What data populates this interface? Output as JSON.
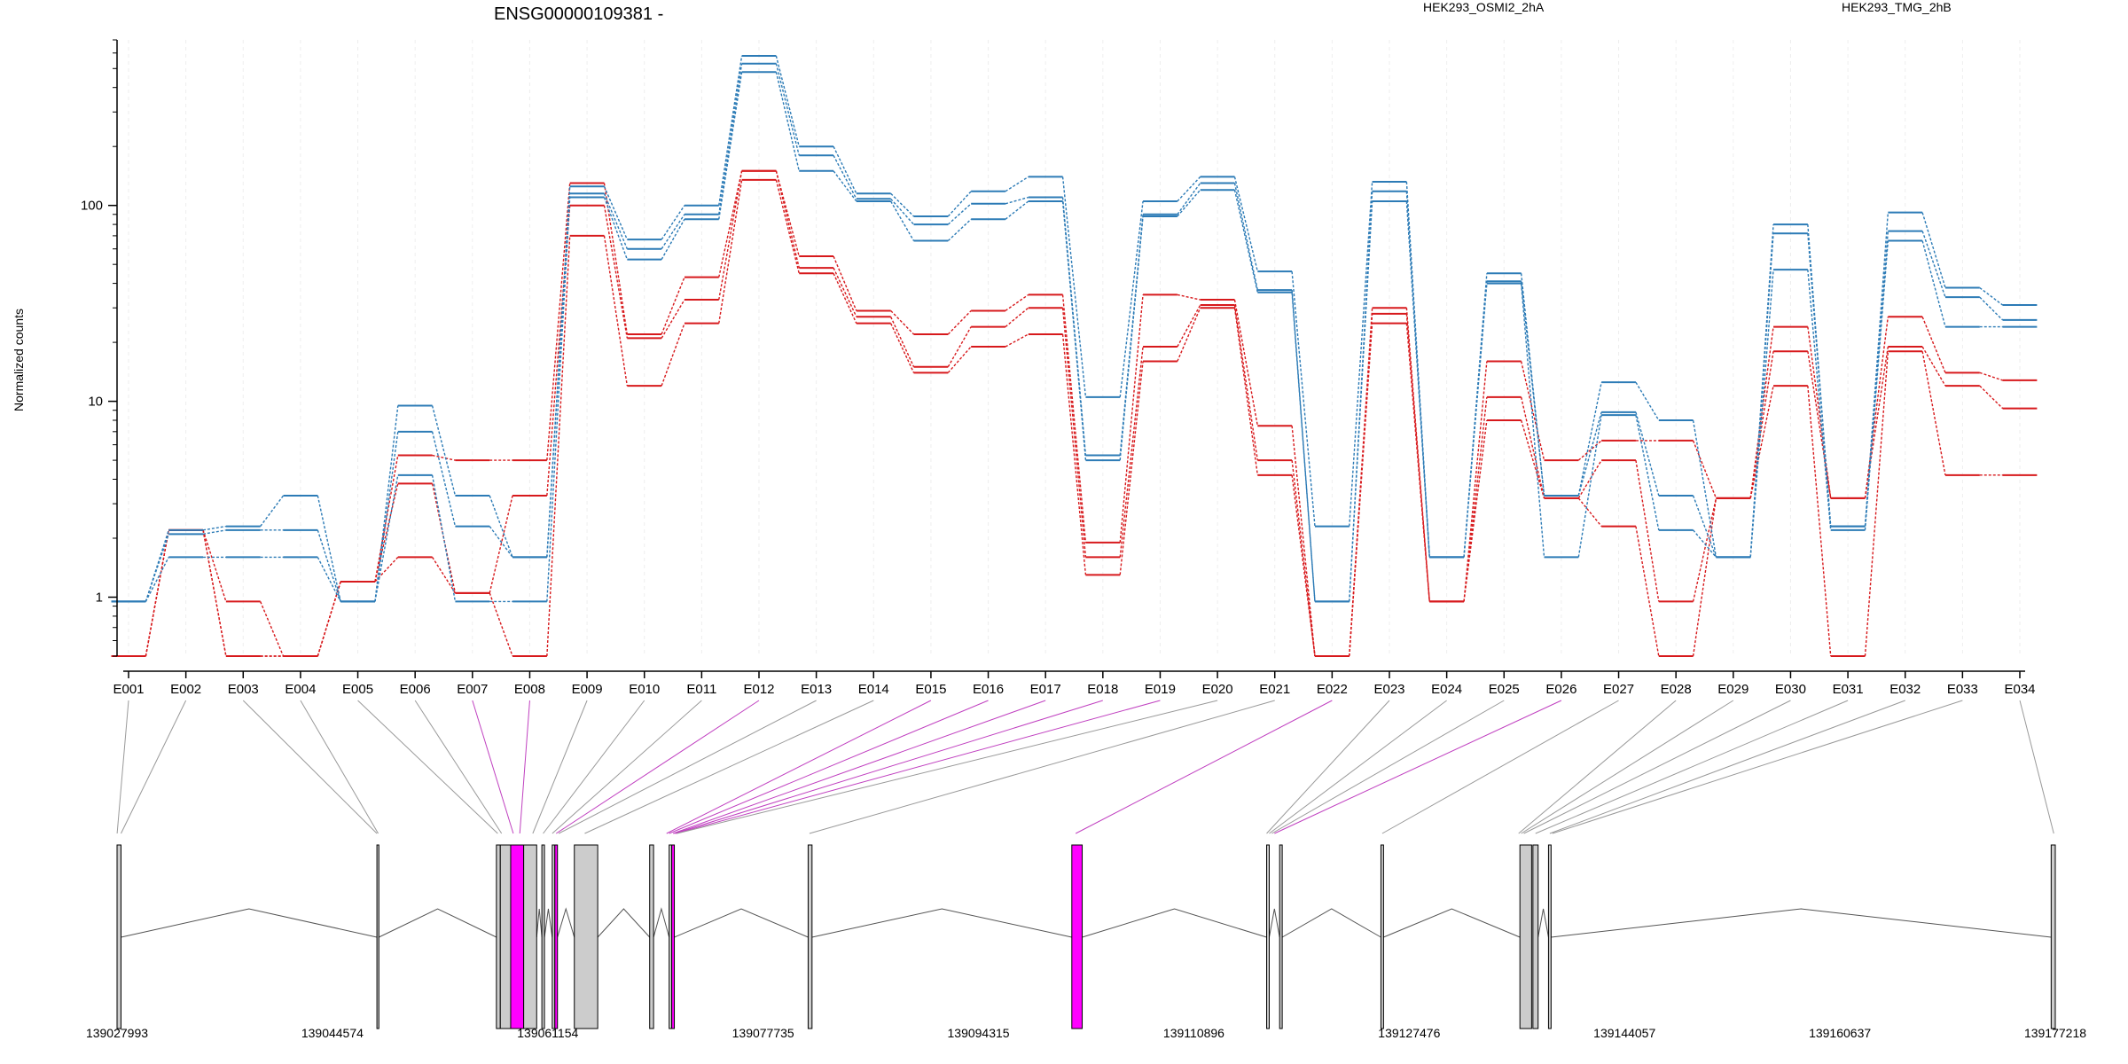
{
  "figure": {
    "title": "ENSG00000109381 -",
    "ylabel": "Normalized counts",
    "legend_placement": "top",
    "colors": {
      "cond_a": "#d7191c",
      "cond_b": "#2c7bb6",
      "highlight": "#ff00ff",
      "exon_fill": "#cccccc"
    }
  },
  "chart_data": [
    {
      "type": "line",
      "scale": "log",
      "ylim": [
        0.5,
        700
      ],
      "yticks": [
        "1",
        "10",
        "100"
      ],
      "ytick_values": [
        1,
        10,
        100
      ],
      "grid": true,
      "categories": [
        "E001",
        "E002",
        "E003",
        "E004",
        "E005",
        "E006",
        "E007",
        "E008",
        "E009",
        "E010",
        "E011",
        "E012",
        "E013",
        "E014",
        "E015",
        "E016",
        "E017",
        "E018",
        "E019",
        "E020",
        "E021",
        "E022",
        "E023",
        "E024",
        "E025",
        "E026",
        "E027",
        "E028",
        "E029",
        "E030",
        "E031",
        "E032",
        "E033",
        "E034"
      ],
      "series": [
        {
          "name": "HEK293_OSMI2_2hA",
          "color": "#d7191c",
          "values": [
            0.5,
            2.2,
            0.5,
            0.5,
            1.2,
            5.3,
            5.0,
            5.0,
            130,
            22,
            43,
            150,
            55,
            29,
            22,
            29,
            35,
            1.9,
            35,
            33,
            7.5,
            0.5,
            30,
            0.95,
            16,
            5.0,
            6.3,
            6.3,
            3.2,
            24,
            3.2,
            27,
            14,
            12.8
          ]
        },
        {
          "name": "",
          "color": "#d7191c",
          "values": [
            0.5,
            2.2,
            0.95,
            0.5,
            1.2,
            3.8,
            1.05,
            3.3,
            100,
            21,
            33,
            150,
            48,
            27,
            15,
            24,
            30,
            1.6,
            19,
            31,
            5.0,
            0.5,
            28,
            0.95,
            10.5,
            3.2,
            5.0,
            0.95,
            3.2,
            18,
            3.2,
            19,
            12,
            9.2
          ]
        },
        {
          "name": "",
          "color": "#d7191c",
          "values": [
            0.5,
            2.2,
            0.5,
            0.5,
            1.2,
            1.6,
            1.05,
            0.5,
            70,
            12,
            25,
            135,
            45,
            25,
            14,
            19,
            22,
            1.3,
            16,
            30,
            4.2,
            0.5,
            25,
            0.95,
            8,
            3.2,
            2.3,
            0.5,
            3.2,
            12,
            0.5,
            18,
            4.2,
            4.2
          ]
        },
        {
          "name": "HEK293_TMG_2hB",
          "color": "#2c7bb6",
          "values": [
            0.95,
            2.2,
            2.3,
            3.3,
            0.95,
            9.5,
            3.3,
            1.6,
            125,
            67,
            100,
            580,
            200,
            115,
            88,
            118,
            140,
            10.5,
            105,
            140,
            46,
            2.3,
            132,
            1.6,
            45,
            3.3,
            12.5,
            8,
            1.6,
            80,
            2.3,
            92,
            38,
            31
          ]
        },
        {
          "name": "",
          "color": "#2c7bb6",
          "values": [
            0.95,
            2.1,
            2.2,
            2.2,
            0.95,
            7.0,
            2.3,
            1.6,
            115,
            60,
            90,
            530,
            180,
            108,
            80,
            102,
            110,
            5.3,
            90,
            130,
            37,
            0.95,
            118,
            1.6,
            41,
            3.3,
            8.8,
            3.3,
            1.6,
            72,
            2.3,
            74,
            34,
            26
          ]
        },
        {
          "name": "",
          "color": "#2c7bb6",
          "values": [
            0.95,
            1.6,
            1.6,
            1.6,
            0.95,
            4.2,
            0.95,
            0.95,
            110,
            53,
            85,
            480,
            150,
            105,
            66,
            85,
            105,
            5.0,
            88,
            120,
            36,
            0.95,
            105,
            1.6,
            40,
            1.6,
            8.5,
            2.2,
            1.6,
            47,
            2.2,
            66,
            24,
            24
          ]
        }
      ]
    },
    {
      "type": "gene-model",
      "xlim": [
        139027993,
        139177218
      ],
      "xticks": [
        "139027993",
        "139044574",
        "139061154",
        "139077735",
        "139094315",
        "139110896",
        "139127476",
        "139144057",
        "139160637",
        "139177218"
      ],
      "xtick_values": [
        139027993,
        139044574,
        139061154,
        139077735,
        139094315,
        139110896,
        139127476,
        139144057,
        139160637,
        139177218
      ],
      "exons": [
        {
          "start": 139027993,
          "end": 139028300,
          "highlight": false
        },
        {
          "start": 139048000,
          "end": 139048150,
          "highlight": false
        },
        {
          "start": 139057200,
          "end": 139057500,
          "highlight": false
        },
        {
          "start": 139057500,
          "end": 139058300,
          "highlight": false
        },
        {
          "start": 139058300,
          "end": 139059300,
          "highlight": true
        },
        {
          "start": 139059300,
          "end": 139060300,
          "highlight": false
        },
        {
          "start": 139060700,
          "end": 139060900,
          "highlight": false
        },
        {
          "start": 139061500,
          "end": 139061700,
          "highlight": false
        },
        {
          "start": 139061700,
          "end": 139061900,
          "highlight": true
        },
        {
          "start": 139063200,
          "end": 139065000,
          "highlight": false
        },
        {
          "start": 139069000,
          "end": 139069300,
          "highlight": false
        },
        {
          "start": 139070500,
          "end": 139070700,
          "highlight": false
        },
        {
          "start": 139070700,
          "end": 139070900,
          "highlight": true
        },
        {
          "start": 139081200,
          "end": 139081500,
          "highlight": false
        },
        {
          "start": 139101500,
          "end": 139102300,
          "highlight": true
        },
        {
          "start": 139116500,
          "end": 139116700,
          "highlight": false
        },
        {
          "start": 139117500,
          "end": 139117700,
          "highlight": false
        },
        {
          "start": 139125300,
          "end": 139125500,
          "highlight": false
        },
        {
          "start": 139136000,
          "end": 139136900,
          "highlight": false
        },
        {
          "start": 139137000,
          "end": 139137400,
          "highlight": false
        },
        {
          "start": 139138200,
          "end": 139138400,
          "highlight": false
        },
        {
          "start": 139176900,
          "end": 139177218,
          "highlight": false
        }
      ],
      "bin_map": [
        {
          "bin": "E001",
          "pos": 139028000,
          "highlight": false
        },
        {
          "bin": "E002",
          "pos": 139028300,
          "highlight": false
        },
        {
          "bin": "E003",
          "pos": 139048000,
          "highlight": false
        },
        {
          "bin": "E004",
          "pos": 139048100,
          "highlight": false
        },
        {
          "bin": "E005",
          "pos": 139057300,
          "highlight": false
        },
        {
          "bin": "E006",
          "pos": 139057600,
          "highlight": false
        },
        {
          "bin": "E007",
          "pos": 139058500,
          "highlight": true
        },
        {
          "bin": "E008",
          "pos": 139059000,
          "highlight": true
        },
        {
          "bin": "E009",
          "pos": 139060000,
          "highlight": false
        },
        {
          "bin": "E010",
          "pos": 139060800,
          "highlight": false
        },
        {
          "bin": "E011",
          "pos": 139061500,
          "highlight": false
        },
        {
          "bin": "E012",
          "pos": 139061800,
          "highlight": true
        },
        {
          "bin": "E013",
          "pos": 139062000,
          "highlight": false
        },
        {
          "bin": "E014",
          "pos": 139064000,
          "highlight": false
        },
        {
          "bin": "E015",
          "pos": 139070300,
          "highlight": true
        },
        {
          "bin": "E016",
          "pos": 139070500,
          "highlight": true
        },
        {
          "bin": "E017",
          "pos": 139070800,
          "highlight": true
        },
        {
          "bin": "E018",
          "pos": 139070900,
          "highlight": true
        },
        {
          "bin": "E019",
          "pos": 139071000,
          "highlight": true
        },
        {
          "bin": "E020",
          "pos": 139071100,
          "highlight": false
        },
        {
          "bin": "E021",
          "pos": 139081300,
          "highlight": false
        },
        {
          "bin": "E022",
          "pos": 139101800,
          "highlight": true
        },
        {
          "bin": "E023",
          "pos": 139116500,
          "highlight": false
        },
        {
          "bin": "E024",
          "pos": 139116700,
          "highlight": false
        },
        {
          "bin": "E025",
          "pos": 139116900,
          "highlight": false
        },
        {
          "bin": "E026",
          "pos": 139117100,
          "highlight": true
        },
        {
          "bin": "E027",
          "pos": 139125400,
          "highlight": false
        },
        {
          "bin": "E028",
          "pos": 139135900,
          "highlight": false
        },
        {
          "bin": "E029",
          "pos": 139136100,
          "highlight": false
        },
        {
          "bin": "E030",
          "pos": 139136300,
          "highlight": false
        },
        {
          "bin": "E031",
          "pos": 139137200,
          "highlight": false
        },
        {
          "bin": "E032",
          "pos": 139138300,
          "highlight": false
        },
        {
          "bin": "E033",
          "pos": 139138500,
          "highlight": false
        },
        {
          "bin": "E034",
          "pos": 139177100,
          "highlight": false
        }
      ]
    }
  ]
}
